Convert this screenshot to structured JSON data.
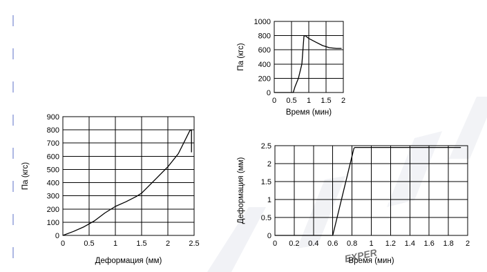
{
  "colors": {
    "line": "#000000",
    "grid": "#000000",
    "margin_dashes": "#5b6fc7",
    "watermark": "#d9dce6"
  },
  "watermark": {
    "text": "EXPER"
  },
  "chart_data": [
    {
      "id": "force-vs-time",
      "type": "line",
      "title": "",
      "xlabel": "Время (мин)",
      "ylabel": "Па (кгс)",
      "xlim": [
        0,
        2
      ],
      "ylim": [
        0,
        1000
      ],
      "x_ticks": [
        0,
        0.5,
        1,
        1.5,
        2
      ],
      "x_tick_labels": [
        "0",
        "0.5",
        "1",
        "1.5",
        "2"
      ],
      "y_ticks": [
        0,
        200,
        400,
        600,
        800,
        1000
      ],
      "y_tick_labels": [
        "0",
        "200",
        "400",
        "600",
        "800",
        "1000"
      ],
      "grid": true,
      "series": [
        {
          "x": [
            0,
            0.55,
            0.6,
            0.7,
            0.8,
            0.86,
            0.9,
            1.0,
            1.2,
            1.4,
            1.6,
            1.8,
            1.95
          ],
          "y": [
            0,
            0,
            80,
            200,
            400,
            790,
            800,
            760,
            710,
            660,
            630,
            620,
            620
          ]
        }
      ]
    },
    {
      "id": "force-vs-deformation",
      "type": "line",
      "title": "",
      "xlabel": "Деформация (мм)",
      "ylabel": "Па (кгс)",
      "xlim": [
        0,
        2.5
      ],
      "ylim": [
        0,
        900
      ],
      "x_ticks": [
        0,
        0.5,
        1,
        1.5,
        2,
        2.5
      ],
      "x_tick_labels": [
        "0",
        "0.5",
        "1",
        "1.5",
        "2",
        "2.5"
      ],
      "y_ticks": [
        0,
        100,
        200,
        300,
        400,
        500,
        600,
        700,
        800,
        900
      ],
      "y_tick_labels": [
        "0",
        "100",
        "200",
        "300",
        "400",
        "500",
        "600",
        "700",
        "800",
        "900"
      ],
      "grid": true,
      "series": [
        {
          "x": [
            0,
            0.2,
            0.4,
            0.6,
            0.8,
            1.0,
            1.2,
            1.4,
            1.5,
            1.6,
            1.8,
            2.0,
            2.2,
            2.42,
            2.45,
            2.45
          ],
          "y": [
            0,
            30,
            65,
            110,
            170,
            220,
            255,
            295,
            320,
            360,
            440,
            520,
            620,
            795,
            800,
            630
          ]
        }
      ]
    },
    {
      "id": "deformation-vs-time",
      "type": "line",
      "title": "",
      "xlabel": "Время (мин)",
      "ylabel": "Деформация (мм)",
      "xlim": [
        0,
        2
      ],
      "ylim": [
        0,
        2.5
      ],
      "x_ticks": [
        0,
        0.2,
        0.4,
        0.6,
        0.8,
        1.0,
        1.2,
        1.4,
        1.6,
        1.8,
        2.0
      ],
      "x_tick_labels": [
        "0",
        "0.2",
        "0.4",
        "0.6",
        "0.8",
        "1",
        "1.2",
        "1.4",
        "1.6",
        "1.8",
        "2"
      ],
      "y_ticks": [
        0,
        0.5,
        1.0,
        1.5,
        2.0,
        2.5
      ],
      "y_tick_labels": [
        "0",
        "0.5",
        "1",
        "1.5",
        "2",
        "2.5"
      ],
      "grid": true,
      "series": [
        {
          "x": [
            0,
            0.6,
            0.82,
            0.83,
            1.93
          ],
          "y": [
            0,
            0,
            2.43,
            2.45,
            2.45
          ]
        }
      ]
    }
  ]
}
